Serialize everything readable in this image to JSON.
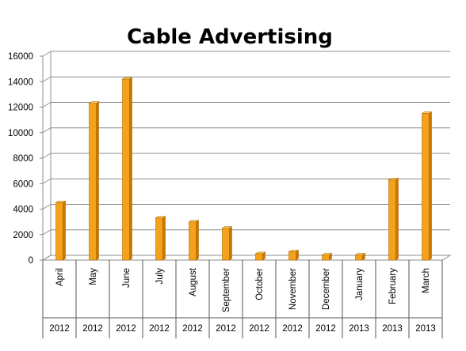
{
  "chart_data": {
    "type": "bar",
    "title": "Cable Advertising",
    "categories": [
      "April",
      "May",
      "June",
      "July",
      "August",
      "September",
      "October",
      "November",
      "December",
      "January",
      "February",
      "March"
    ],
    "years": [
      "2012",
      "2012",
      "2012",
      "2012",
      "2012",
      "2012",
      "2012",
      "2012",
      "2012",
      "2013",
      "2013",
      "2013"
    ],
    "values": [
      4500,
      12300,
      14200,
      3300,
      3000,
      2500,
      500,
      650,
      400,
      400,
      6300,
      11500
    ],
    "ylim": [
      0,
      16000
    ],
    "yticks": [
      "0",
      "2000",
      "4000",
      "6000",
      "8000",
      "10000",
      "12000",
      "14000",
      "16000"
    ],
    "xlabel": "",
    "ylabel": "",
    "grid": true,
    "legend": "none",
    "bar_color": "#F4A21C",
    "bar_dark": "#C87800",
    "bar_light": "#FFD070"
  }
}
